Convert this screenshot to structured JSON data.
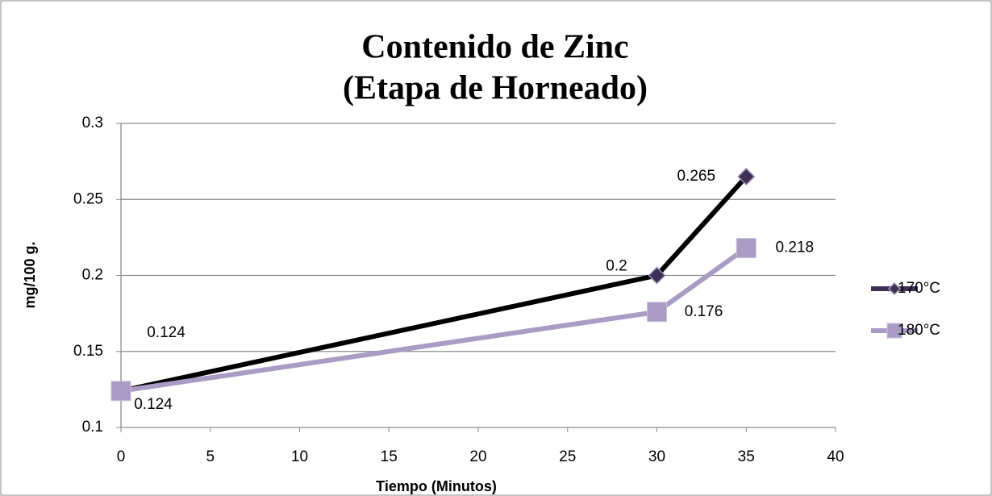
{
  "chart_data": {
    "type": "line",
    "title": [
      "Contenido de Zinc",
      "(Etapa de Horneado)"
    ],
    "x_label": "Tiempo (Minutos)",
    "y_label": "mg/100 g.",
    "x": [
      0,
      30,
      35
    ],
    "series": [
      {
        "name": "170°C",
        "color": "#000000",
        "marker_color": "#3e2f55",
        "marker": "diamond",
        "values": [
          0.124,
          0.2,
          0.265
        ]
      },
      {
        "name": "180°C",
        "color": "#a99bc4",
        "marker_color": "#a99bc4",
        "marker": "square",
        "values": [
          0.124,
          0.176,
          0.218
        ]
      }
    ],
    "xlim": [
      0,
      40
    ],
    "xticks": [
      0,
      5,
      10,
      15,
      20,
      25,
      30,
      35,
      40
    ],
    "ylim": [
      0.1,
      0.3
    ],
    "yticks": [
      0.1,
      0.15,
      0.2,
      0.25,
      0.3
    ],
    "grid": true,
    "legend": "right"
  }
}
